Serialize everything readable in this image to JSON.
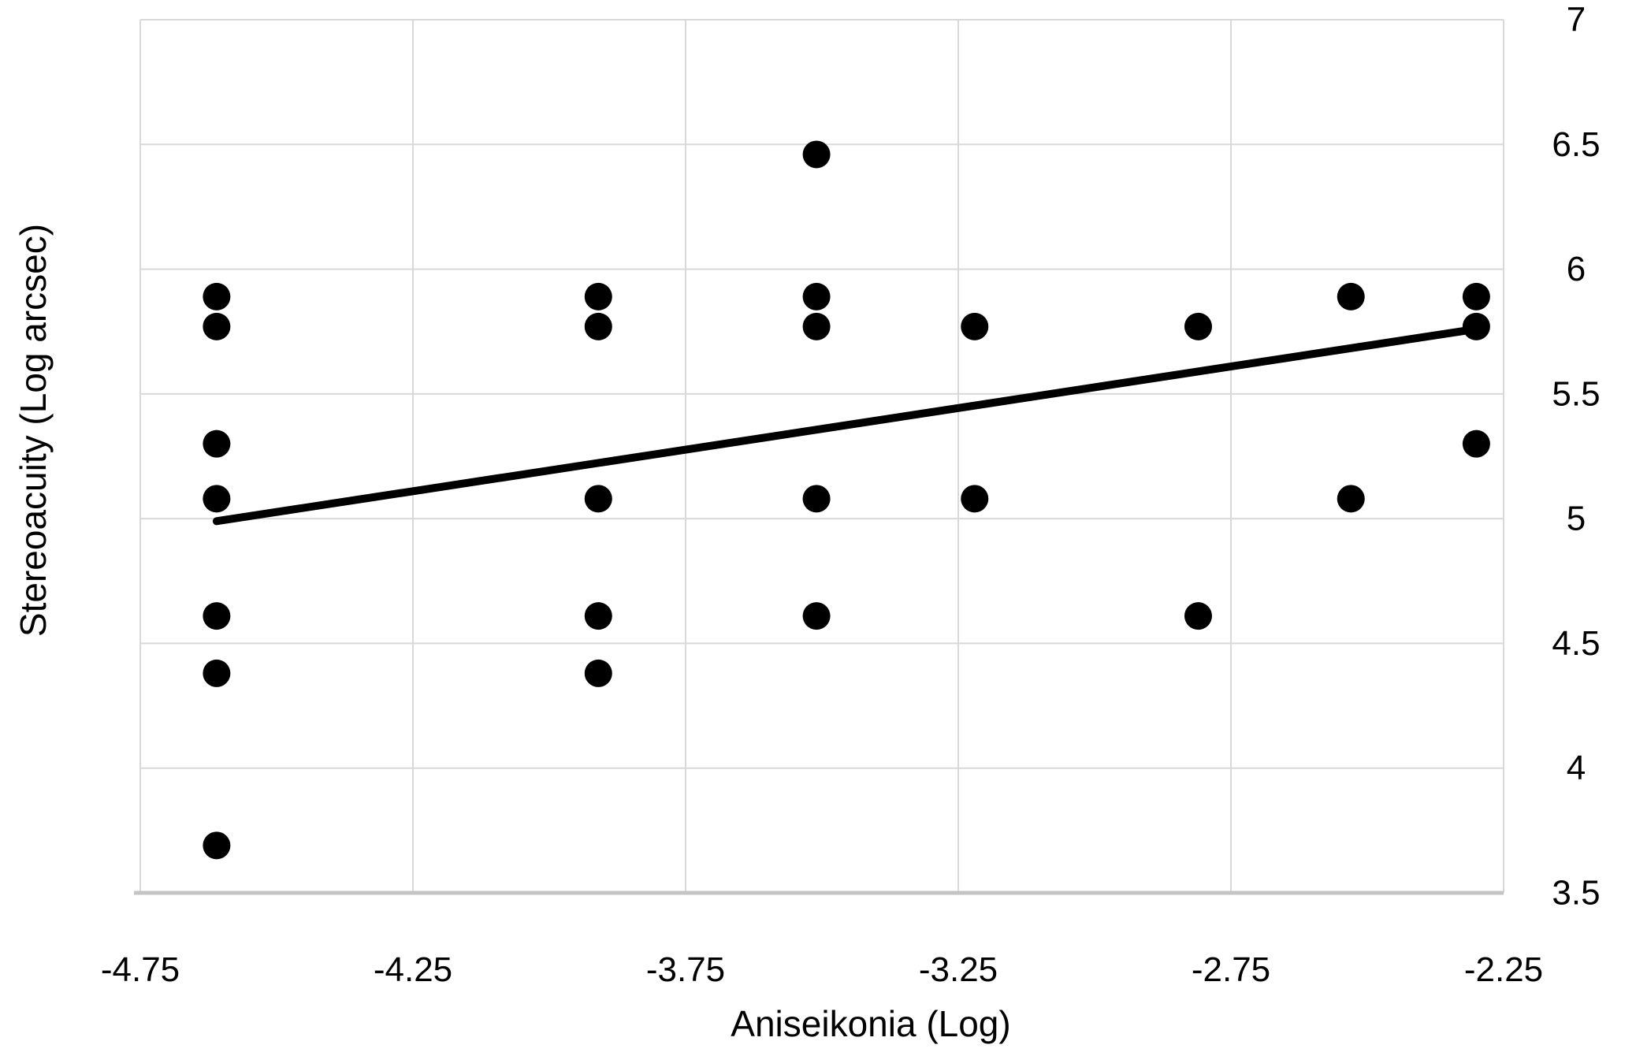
{
  "chart_data": {
    "type": "scatter",
    "title": "",
    "xlabel": "Aniseikonia (Log)",
    "ylabel": "Stereoacuity (Log arcsec)",
    "xlim": [
      -4.75,
      -2.25
    ],
    "ylim": [
      3.5,
      7
    ],
    "x_tick_values": [
      -4.75,
      -4.25,
      -3.75,
      -3.25,
      -2.75,
      -2.25
    ],
    "x_tick_labels": [
      "-4.75",
      "-4.25",
      "-3.75",
      "-3.25",
      "-2.75",
      "-2.25"
    ],
    "y_tick_values": [
      3.5,
      4,
      4.5,
      5,
      5.5,
      6,
      6.5,
      7
    ],
    "y_tick_labels": [
      "3.5",
      "4",
      "4.5",
      "5",
      "5.5",
      "6",
      "6.5",
      "7"
    ],
    "y_axis_side": "right",
    "grid": true,
    "legend": "none",
    "points": [
      {
        "x": -4.61,
        "y": 5.89
      },
      {
        "x": -4.61,
        "y": 5.77
      },
      {
        "x": -4.61,
        "y": 5.3
      },
      {
        "x": -4.61,
        "y": 5.08
      },
      {
        "x": -4.61,
        "y": 4.61
      },
      {
        "x": -4.61,
        "y": 4.38
      },
      {
        "x": -4.61,
        "y": 3.69
      },
      {
        "x": -3.91,
        "y": 5.89
      },
      {
        "x": -3.91,
        "y": 5.77
      },
      {
        "x": -3.91,
        "y": 5.08
      },
      {
        "x": -3.91,
        "y": 4.61
      },
      {
        "x": -3.91,
        "y": 4.38
      },
      {
        "x": -3.51,
        "y": 6.46
      },
      {
        "x": -3.51,
        "y": 5.89
      },
      {
        "x": -3.51,
        "y": 5.77
      },
      {
        "x": -3.51,
        "y": 5.08
      },
      {
        "x": -3.51,
        "y": 4.61
      },
      {
        "x": -3.22,
        "y": 5.77
      },
      {
        "x": -3.22,
        "y": 5.08
      },
      {
        "x": -2.81,
        "y": 5.77
      },
      {
        "x": -2.81,
        "y": 4.61
      },
      {
        "x": -2.53,
        "y": 5.89
      },
      {
        "x": -2.53,
        "y": 5.08
      },
      {
        "x": -2.3,
        "y": 5.89
      },
      {
        "x": -2.3,
        "y": 5.77
      },
      {
        "x": -2.3,
        "y": 5.3
      }
    ],
    "trend_line": {
      "x1": -4.61,
      "y1": 4.99,
      "x2": -2.3,
      "y2": 5.76
    },
    "colors": {
      "point": "#000000",
      "trend_line": "#000000",
      "grid": "#d9d9d9",
      "bottom_border": "#c4c4c4",
      "background": "#ffffff",
      "text": "#000000"
    }
  }
}
